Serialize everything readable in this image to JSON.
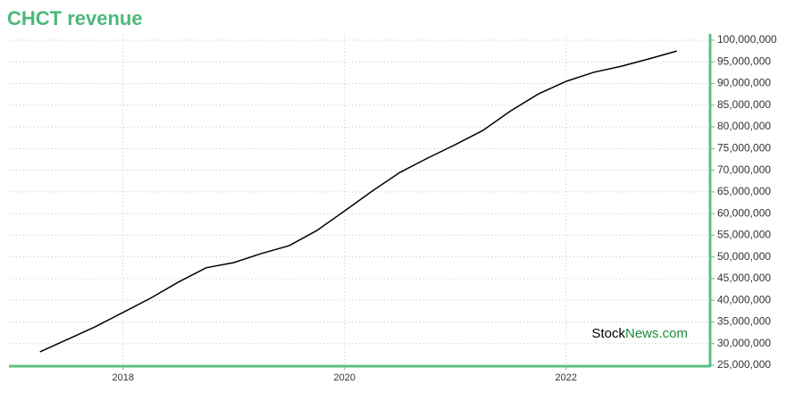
{
  "chart_data": {
    "type": "line",
    "title": "CHCT revenue",
    "x": [
      2017.25,
      2017.5,
      2017.75,
      2018.0,
      2018.25,
      2018.5,
      2018.75,
      2019.0,
      2019.25,
      2019.5,
      2019.75,
      2020.0,
      2020.25,
      2020.5,
      2020.75,
      2021.0,
      2021.25,
      2021.5,
      2021.75,
      2022.0,
      2022.25,
      2022.5,
      2022.75,
      2023.0
    ],
    "series": [
      {
        "color": "#000000",
        "values": [
          28100000,
          31000000,
          33900000,
          37200000,
          40500000,
          44200000,
          47500000,
          48700000,
          50800000,
          52600000,
          56100000,
          60600000,
          65200000,
          69500000,
          72800000,
          75900000,
          79200000,
          83700000,
          87600000,
          90500000,
          92600000,
          94000000,
          95700000,
          97500000
        ]
      }
    ],
    "xlim": [
      2016.97,
      2023.3
    ],
    "xticks": [
      2018,
      2020,
      2022
    ],
    "ylim": [
      25000000,
      100000000
    ],
    "yticks": [
      {
        "value": 25000000,
        "label": "25,000,000"
      },
      {
        "value": 30000000,
        "label": "30,000,000"
      },
      {
        "value": 35000000,
        "label": "35,000,000"
      },
      {
        "value": 40000000,
        "label": "40,000,000"
      },
      {
        "value": 45000000,
        "label": "45,000,000"
      },
      {
        "value": 50000000,
        "label": "50,000,000"
      },
      {
        "value": 55000000,
        "label": "55,000,000"
      },
      {
        "value": 60000000,
        "label": "60,000,000"
      },
      {
        "value": 65000000,
        "label": "65,000,000"
      },
      {
        "value": 70000000,
        "label": "70,000,000"
      },
      {
        "value": 75000000,
        "label": "75,000,000"
      },
      {
        "value": 80000000,
        "label": "80,000,000"
      },
      {
        "value": 85000000,
        "label": "85,000,000"
      },
      {
        "value": 90000000,
        "label": "90,000,000"
      },
      {
        "value": 95000000,
        "label": "95,000,000"
      },
      {
        "value": 100000000,
        "label": "100,000,000"
      }
    ],
    "grid": true,
    "axis_color": "#5cbf85",
    "watermark": [
      "Stock",
      "News.com"
    ]
  }
}
